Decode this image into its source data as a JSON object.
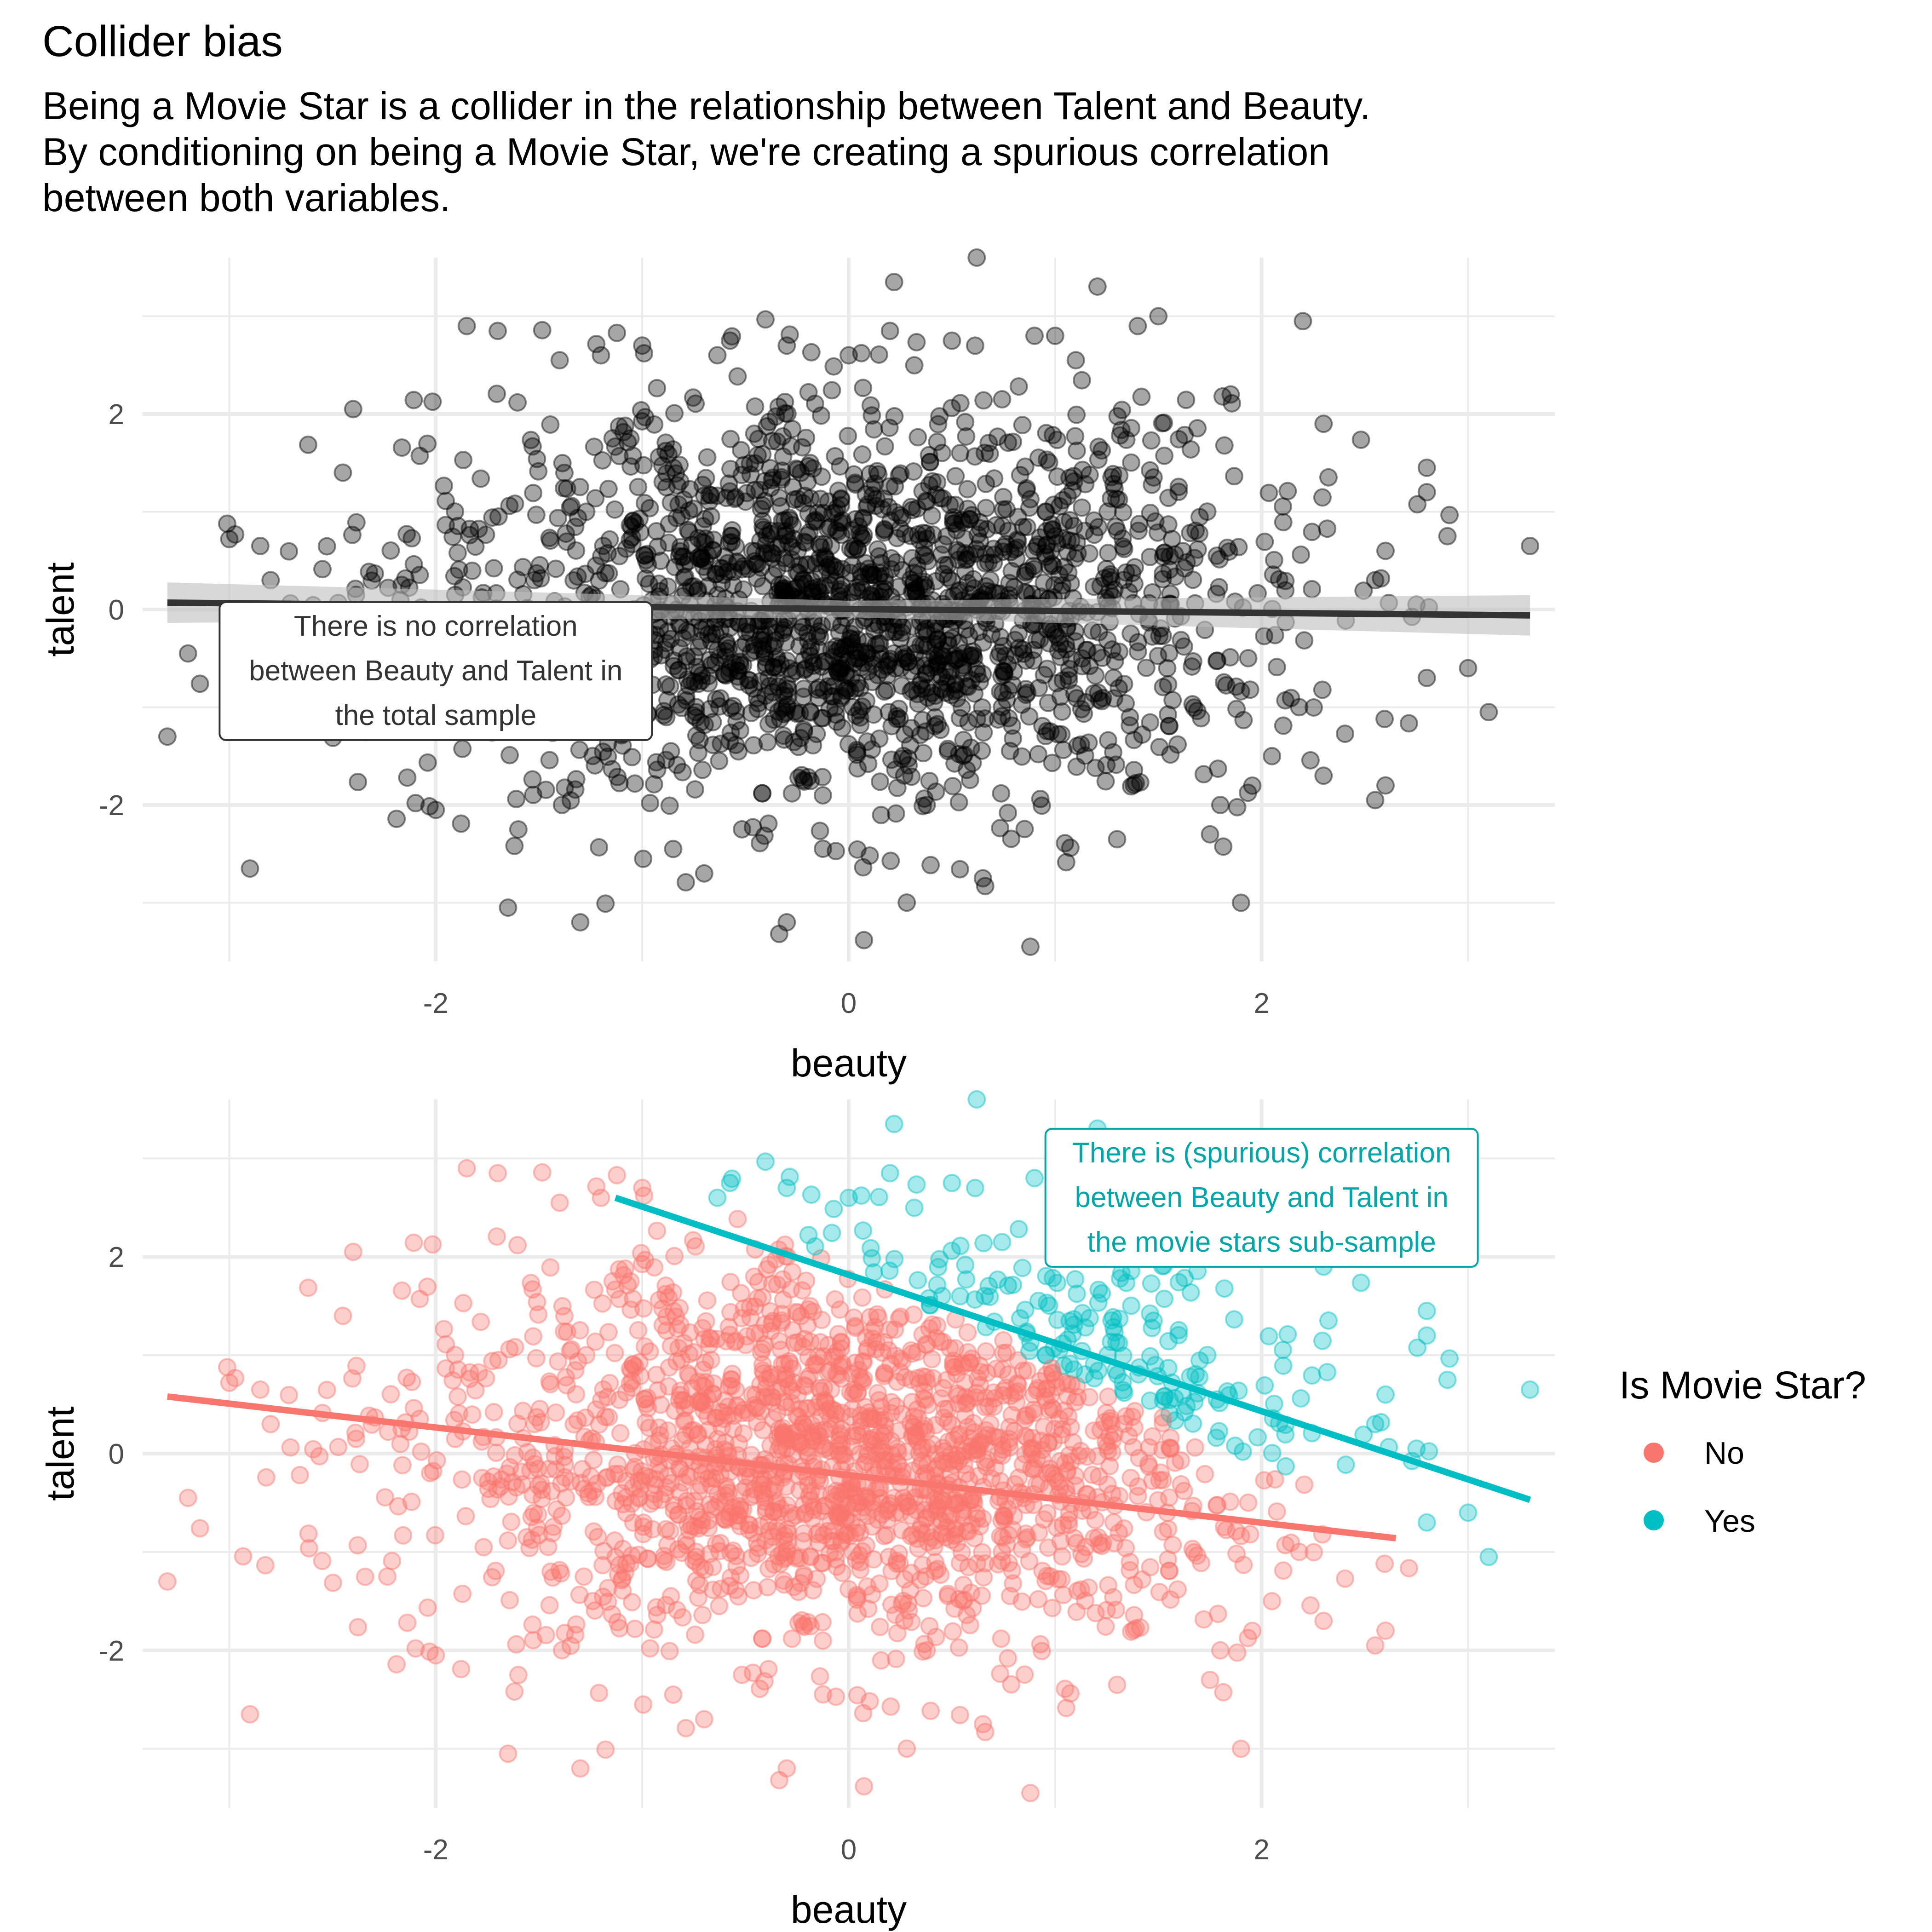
{
  "title": "Collider bias",
  "subtitle": [
    "Being a Movie Star is a collider in the relationship between Talent and Beauty.",
    "By conditioning on being a Movie Star, we're creating a spurious correlation",
    "between both variables."
  ],
  "colors": {
    "black_points": "#000000",
    "no": "#F8766D",
    "yes": "#00BFC4",
    "yes_text": "#00A6A8",
    "grid": "#EBEBEB",
    "ribbon": "#BEBEBE",
    "top_line": "#333333"
  },
  "chart_data": [
    {
      "type": "scatter",
      "name": "total-sample",
      "xlabel": "beauty",
      "ylabel": "talent",
      "xlim": [
        -3.42,
        3.42
      ],
      "ylim": [
        -3.6,
        3.6
      ],
      "x_ticks": [
        -2,
        0,
        2
      ],
      "y_ticks": [
        -2,
        0,
        2
      ],
      "x_tick_labels": [
        "-2",
        "0",
        "2"
      ],
      "y_tick_labels": [
        "-2",
        "0",
        "2"
      ],
      "grid": true,
      "n_points": 2000,
      "point_opacity": 0.35,
      "random_seed": 11,
      "points": [
        [
          -3.3,
          -1.3
        ],
        [
          -3.2,
          -0.45
        ],
        [
          -3.0,
          0.72
        ],
        [
          -2.9,
          -2.65
        ],
        [
          -2.85,
          0.65
        ],
        [
          -2.8,
          0.3
        ],
        [
          -2.4,
          2.05
        ],
        [
          -2.45,
          1.4
        ],
        [
          -1.85,
          2.9
        ],
        [
          -1.7,
          2.85
        ],
        [
          -1.2,
          2.6
        ],
        [
          -1.4,
          2.55
        ],
        [
          -1.0,
          2.7
        ],
        [
          -0.3,
          2.7
        ],
        [
          0.0,
          2.6
        ],
        [
          0.2,
          2.85
        ],
        [
          0.22,
          3.35
        ],
        [
          0.62,
          3.6
        ],
        [
          0.5,
          2.75
        ],
        [
          0.9,
          2.8
        ],
        [
          1.0,
          2.8
        ],
        [
          1.1,
          2.55
        ],
        [
          1.4,
          2.9
        ],
        [
          1.5,
          3.0
        ],
        [
          2.2,
          2.95
        ],
        [
          1.85,
          2.2
        ],
        [
          2.3,
          1.9
        ],
        [
          2.8,
          1.45
        ],
        [
          2.8,
          1.2
        ],
        [
          2.9,
          0.75
        ],
        [
          3.3,
          0.65
        ],
        [
          2.6,
          0.6
        ],
        [
          2.55,
          0.3
        ],
        [
          2.75,
          0.05
        ],
        [
          2.8,
          -0.7
        ],
        [
          3.0,
          -0.6
        ],
        [
          3.1,
          -1.05
        ],
        [
          2.6,
          -1.8
        ],
        [
          2.55,
          -1.95
        ],
        [
          1.9,
          -3.0
        ],
        [
          0.88,
          -3.45
        ],
        [
          -0.3,
          -3.2
        ],
        [
          -1.3,
          -3.2
        ],
        [
          -1.65,
          -3.05
        ],
        [
          -1.6,
          -2.25
        ],
        [
          -2.0,
          -2.05
        ],
        [
          0.65,
          -2.75
        ],
        [
          -0.7,
          -2.7
        ],
        [
          -0.85,
          -2.45
        ],
        [
          1.3,
          -2.35
        ],
        [
          1.75,
          -2.3
        ],
        [
          1.8,
          -2.0
        ],
        [
          2.05,
          -1.5
        ],
        [
          2.3,
          -1.7
        ]
      ],
      "regression": {
        "x": [
          -3.3,
          3.3
        ],
        "y": [
          0.07,
          -0.06
        ]
      },
      "annotation": {
        "lines": [
          "There is no correlation",
          "between Beauty and Talent in",
          "the total sample"
        ],
        "x": -2.0,
        "y": -0.63
      }
    },
    {
      "type": "scatter",
      "name": "movie-stars",
      "xlabel": "beauty",
      "ylabel": "talent",
      "xlim": [
        -3.42,
        3.42
      ],
      "ylim": [
        -3.6,
        3.6
      ],
      "x_ticks": [
        -2,
        0,
        2
      ],
      "y_ticks": [
        -2,
        0,
        2
      ],
      "x_tick_labels": [
        "-2",
        "0",
        "2"
      ],
      "y_tick_labels": [
        "-2",
        "0",
        "2"
      ],
      "grid": true,
      "point_opacity": 0.35,
      "group_threshold": 1.9,
      "series": [
        {
          "name": "No",
          "regression": {
            "x": [
              -3.3,
              2.65
            ],
            "y": [
              0.58,
              -0.86
            ]
          }
        },
        {
          "name": "Yes",
          "regression": {
            "x": [
              -1.13,
              3.3
            ],
            "y": [
              2.6,
              -0.47
            ]
          }
        }
      ],
      "legend": {
        "title": "Is Movie Star?",
        "position": "right",
        "entries": [
          "No",
          "Yes"
        ]
      },
      "annotation": {
        "lines": [
          "There is (spurious) correlation",
          "between Beauty and Talent in",
          "the movie stars sub-sample"
        ],
        "x": 2.0,
        "y": 2.6
      }
    }
  ]
}
